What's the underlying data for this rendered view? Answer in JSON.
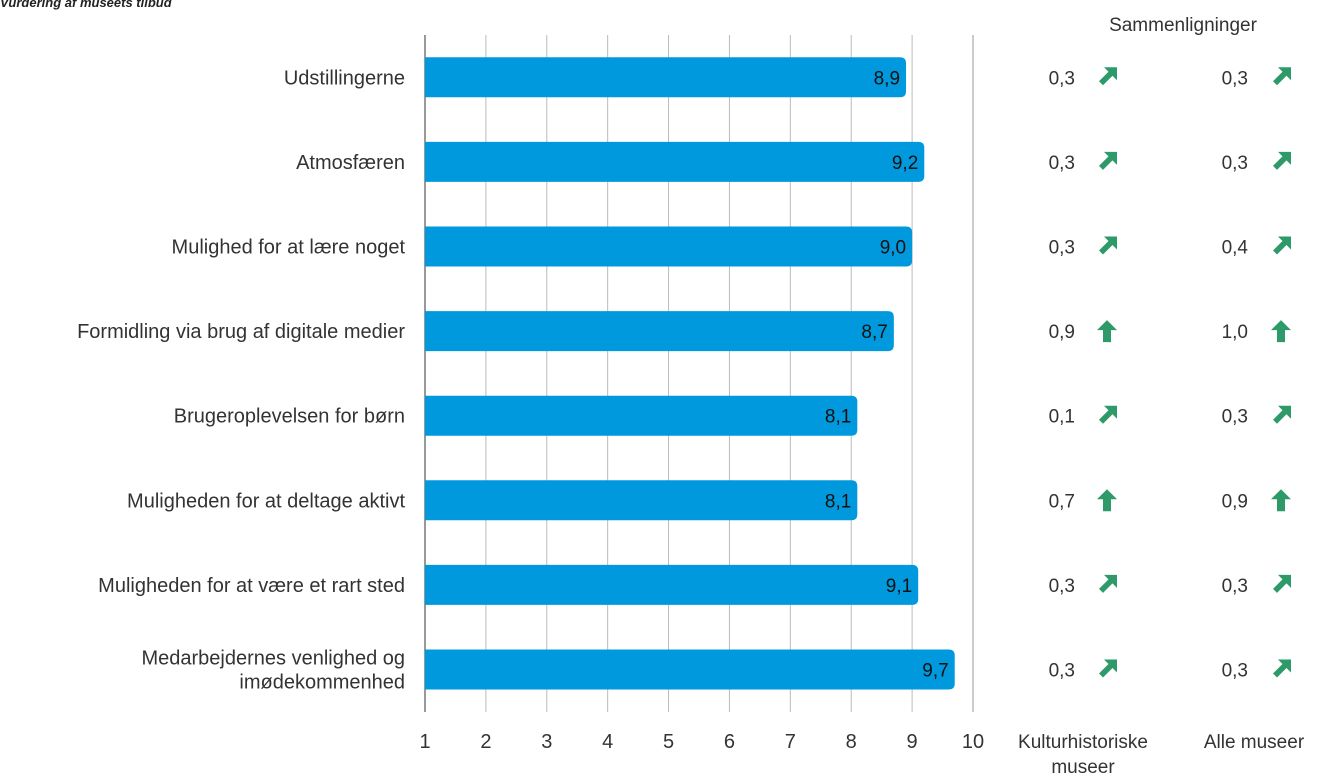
{
  "title": "Vurdering af museets tilbud",
  "comparison_header": "Sammenligninger",
  "column_labels": {
    "kulturhistoriske_line1": "Kulturhistoriske",
    "kulturhistoriske_line2": "museer",
    "alle": "Alle museer"
  },
  "colors": {
    "bar": "#0099DD",
    "arrow": "#2E9A6A",
    "grid": "#BBBBBB",
    "axis": "#999999"
  },
  "chart_data": {
    "type": "bar",
    "orientation": "horizontal",
    "xlim": [
      1,
      10
    ],
    "ticks": [
      "1",
      "2",
      "3",
      "4",
      "5",
      "6",
      "7",
      "8",
      "9",
      "10"
    ],
    "grid": true,
    "categories": [
      [
        "Udstillingerne"
      ],
      [
        "Atmosfæren"
      ],
      [
        "Mulighed for at lære noget"
      ],
      [
        "Formidling via brug af digitale medier"
      ],
      [
        "Brugeroplevelsen for børn"
      ],
      [
        "Muligheden for at deltage aktivt"
      ],
      [
        "Muligheden for at være et rart sted"
      ],
      [
        "Medarbejdernes venlighed og",
        "imødekommenhed"
      ]
    ],
    "values": [
      8.9,
      9.2,
      9.0,
      8.7,
      8.1,
      8.1,
      9.1,
      9.7
    ],
    "value_labels": [
      "8,9",
      "9,2",
      "9,0",
      "8,7",
      "8,1",
      "8,1",
      "9,1",
      "9,7"
    ],
    "comparisons": [
      {
        "name": "Kulturhistoriske museer",
        "labels": [
          "0,3",
          "0,3",
          "0,3",
          "0,9",
          "0,1",
          "0,7",
          "0,3",
          "0,3"
        ],
        "arrows": [
          "up-right",
          "up-right",
          "up-right",
          "up",
          "up-right",
          "up",
          "up-right",
          "up-right"
        ]
      },
      {
        "name": "Alle museer",
        "labels": [
          "0,3",
          "0,3",
          "0,4",
          "1,0",
          "0,3",
          "0,9",
          "0,3",
          "0,3"
        ],
        "arrows": [
          "up-right",
          "up-right",
          "up-right",
          "up",
          "up-right",
          "up",
          "up-right",
          "up-right"
        ]
      }
    ]
  }
}
